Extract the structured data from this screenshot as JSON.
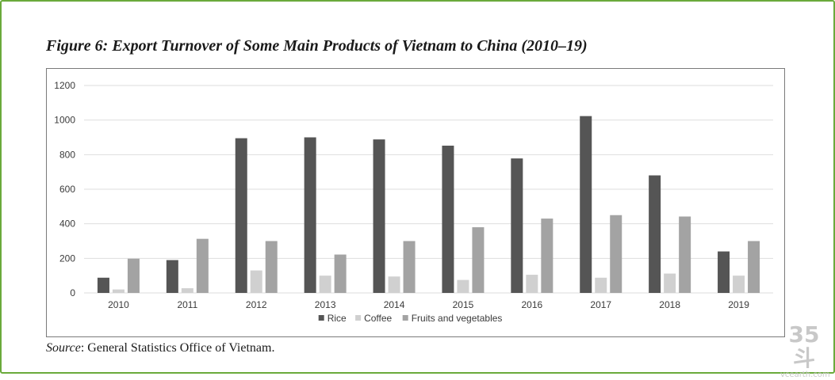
{
  "figure": {
    "title": "Figure 6: Export Turnover of Some Main Products of Vietnam to China (2010–19)",
    "source_label": "Source",
    "source_text": ": General Statistics Office of Vietnam."
  },
  "watermark": {
    "mark": "35斗",
    "site": "vcearth.com"
  },
  "colors": {
    "Rice": "#555555",
    "Coffee": "#d0d0d0",
    "Fruits and vegetables": "#a3a3a3",
    "grid": "#dedede",
    "border": "#6aaa3b"
  },
  "chart_data": {
    "type": "bar",
    "title": "Figure 6: Export Turnover of Some Main Products of Vietnam to China (2010–19)",
    "xlabel": "",
    "ylabel": "",
    "categories": [
      "2010",
      "2011",
      "2012",
      "2013",
      "2014",
      "2015",
      "2016",
      "2017",
      "2018",
      "2019"
    ],
    "series": [
      {
        "name": "Rice",
        "values": [
          88,
          190,
          895,
          900,
          888,
          852,
          778,
          1023,
          680,
          240
        ]
      },
      {
        "name": "Coffee",
        "values": [
          20,
          27,
          130,
          100,
          95,
          75,
          105,
          88,
          112,
          100
        ]
      },
      {
        "name": "Fruits and vegetables",
        "values": [
          198,
          313,
          300,
          222,
          300,
          380,
          430,
          450,
          442,
          300
        ]
      }
    ],
    "ylim": [
      0,
      1200
    ],
    "yticks": [
      0,
      200,
      400,
      600,
      800,
      1000,
      1200
    ],
    "grid": true,
    "legend": "bottom-center"
  }
}
